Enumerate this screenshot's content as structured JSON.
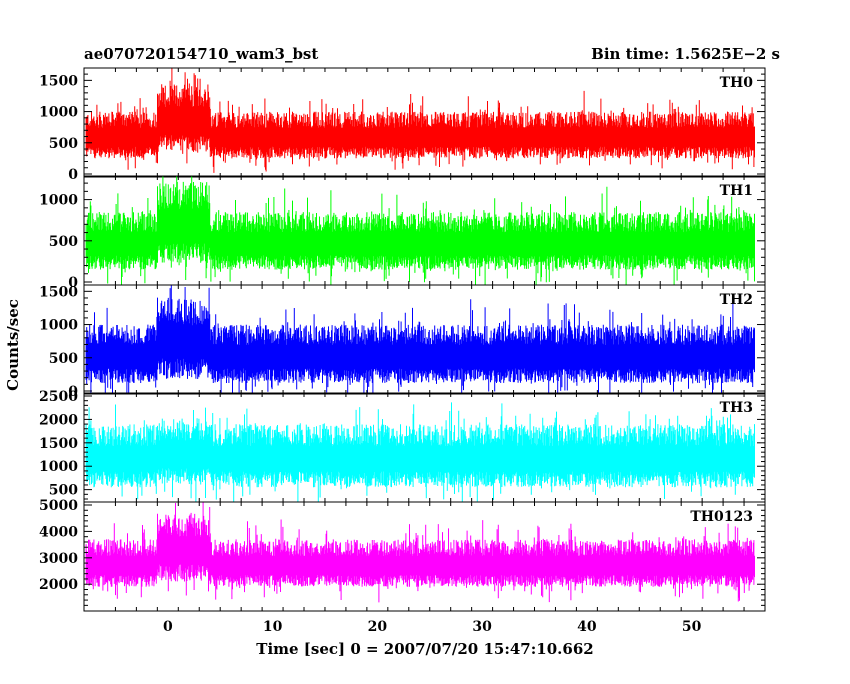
{
  "header": {
    "title": "ae070720154710_wam3_bst",
    "bin_time": "Bin time: 1.5625E−2 s"
  },
  "ylabel": "Counts/sec",
  "xlabel": "Time [sec] 0 = 2007/07/20 15:47:10.662",
  "chart_data": {
    "type": "line",
    "xlim": [
      -8,
      57
    ],
    "x_ticks": [
      0,
      10,
      20,
      30,
      40,
      50
    ],
    "x_start": -7.8,
    "x_end": 56.0,
    "panels": [
      {
        "name": "TH0",
        "color": "#ff0000",
        "ylim": [
          0,
          1650
        ],
        "y_ticks": [
          0,
          500,
          1000,
          1500
        ],
        "baseline_upper": 1000,
        "baseline_lower": 250,
        "burst_upper": 1450,
        "burst_lower": 350,
        "burst_window": [
          -1,
          4
        ]
      },
      {
        "name": "TH1",
        "color": "#00ff00",
        "ylim": [
          0,
          1250
        ],
        "y_ticks": [
          0,
          500,
          1000
        ],
        "baseline_upper": 850,
        "baseline_lower": 150,
        "burst_upper": 1220,
        "burst_lower": 230,
        "burst_window": [
          -1,
          4
        ]
      },
      {
        "name": "TH2",
        "color": "#0000ff",
        "ylim": [
          0,
          1550
        ],
        "y_ticks": [
          0,
          500,
          1000,
          1500
        ],
        "baseline_upper": 1000,
        "baseline_lower": 120,
        "burst_upper": 1420,
        "burst_lower": 180,
        "burst_window": [
          -1,
          4
        ]
      },
      {
        "name": "TH3",
        "color": "#00ffff",
        "ylim": [
          300,
          2500
        ],
        "y_ticks": [
          500,
          1000,
          1500,
          2000,
          2500
        ],
        "baseline_upper": 1900,
        "baseline_lower": 550,
        "burst_upper": 2050,
        "burst_lower": 600,
        "burst_window": [
          -1,
          4
        ]
      },
      {
        "name": "TH0123",
        "color": "#ff00ff",
        "ylim": [
          1100,
          5000
        ],
        "y_ticks": [
          2000,
          3000,
          4000,
          5000
        ],
        "baseline_upper": 3700,
        "baseline_lower": 1900,
        "burst_upper": 4700,
        "burst_lower": 2100,
        "burst_window": [
          -1,
          4
        ]
      }
    ]
  }
}
